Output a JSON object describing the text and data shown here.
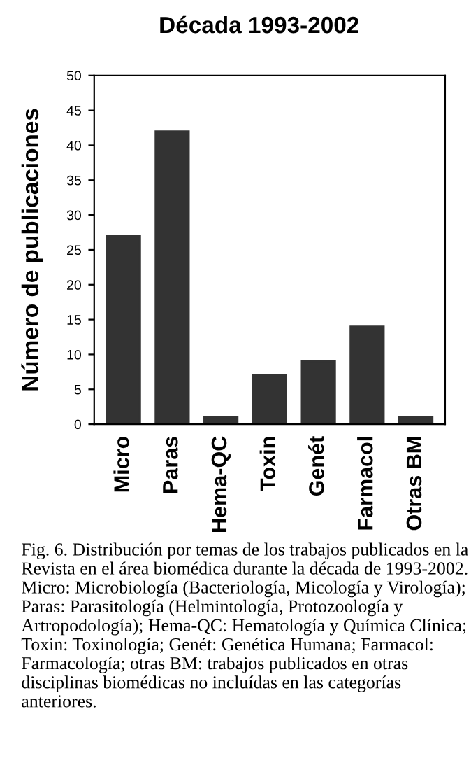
{
  "chart_data": {
    "type": "bar",
    "title": "Década 1993-2002",
    "ylabel": "Número de publicaciones",
    "categories": [
      "Micro",
      "Paras",
      "Hema-QC",
      "Toxin",
      "Genét",
      "Farmacol",
      "Otras BM"
    ],
    "values": [
      27,
      42,
      1,
      7,
      9,
      14,
      1
    ],
    "color": "#333333",
    "ylim": [
      0,
      50
    ],
    "yticks": [
      0,
      5,
      10,
      15,
      20,
      25,
      30,
      35,
      40,
      45,
      50
    ],
    "grid": false,
    "legend": false,
    "annotations": [
      "Fig. 6. Distribución por temas de los trabajos publicados en la Revista en el área biomédica durante la década de 1993-2002. Micro: Microbiología (Bacteriología, Micología y Virología); Paras: Parasitología (Helmintología, Protozoología y Artropodología); Hema-QC: Hematología y Química Clínica; Toxin: Toxinología; Genét: Genética Humana; Farmacol: Farmacología; otras BM: trabajos publicados en otras disciplinas biomédicas no incluídas en las categorías anteriores."
    ]
  }
}
